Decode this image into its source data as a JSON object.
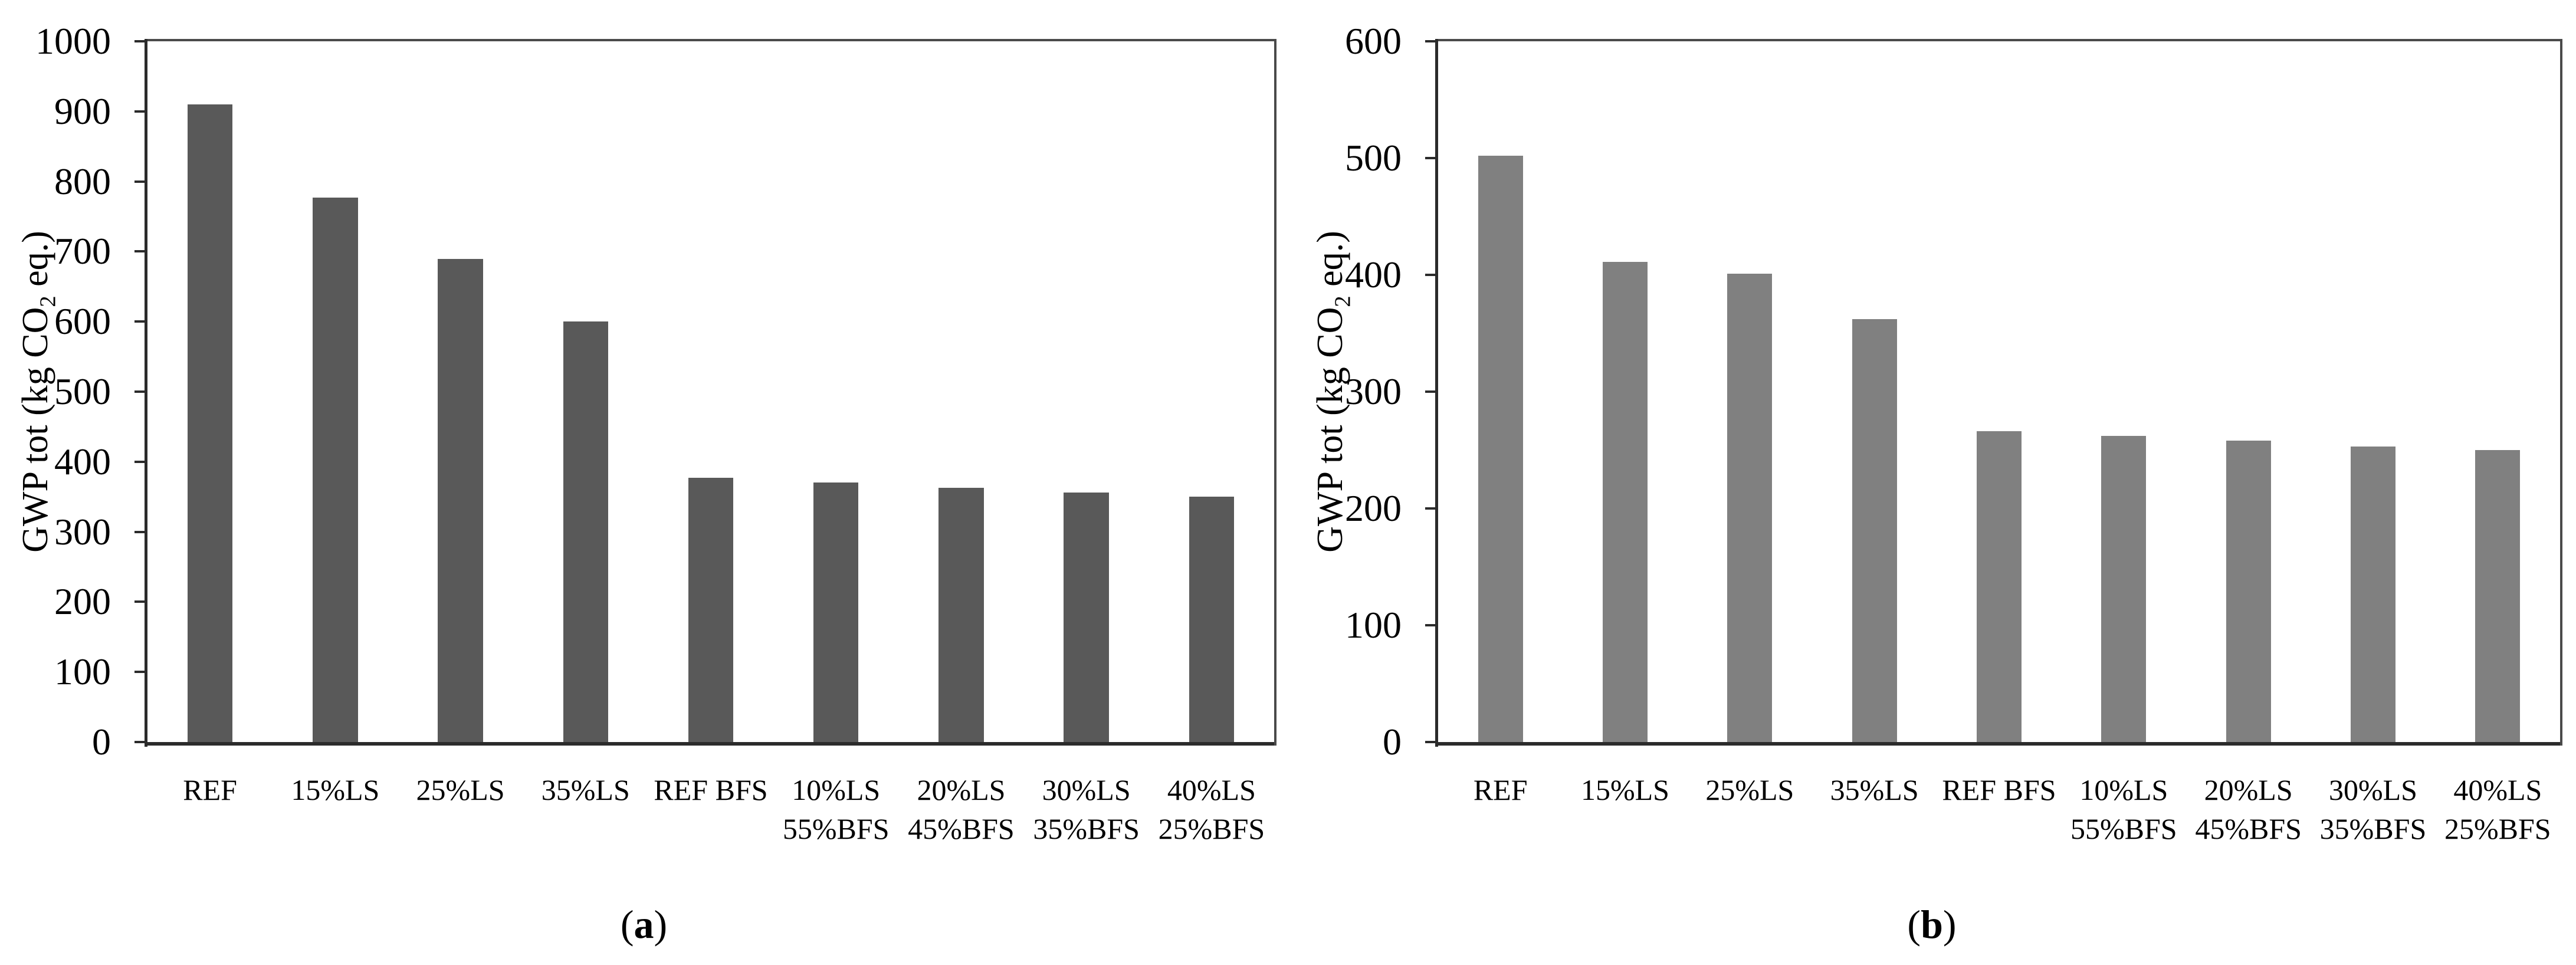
{
  "chart_data": [
    {
      "type": "bar",
      "title": "",
      "xlabel": "",
      "ylabel": "GWP tot (kg CO2 eq.)",
      "ylabel_parts": {
        "pre": "GWP tot (kg CO",
        "sub": "2",
        "post": " eq.)"
      },
      "ylim": [
        0,
        1000
      ],
      "ytick_step": 100,
      "ytick_labels": [
        "0",
        "100",
        "200",
        "300",
        "400",
        "500",
        "600",
        "700",
        "800",
        "900",
        "1000"
      ],
      "grid": false,
      "legend": null,
      "bar_color": "#595959",
      "axis_color": "#2b2b2b",
      "categories": [
        "REF",
        "15%LS",
        "25%LS",
        "35%LS",
        "REF BFS",
        "10%LS 55%BFS",
        "20%LS 45%BFS",
        "30%LS 35%BFS",
        "40%LS 25%BFS"
      ],
      "category_lines": [
        [
          "REF"
        ],
        [
          "15%LS"
        ],
        [
          "25%LS"
        ],
        [
          "35%LS"
        ],
        [
          "REF BFS"
        ],
        [
          "10%LS",
          "55%BFS"
        ],
        [
          "20%LS",
          "45%BFS"
        ],
        [
          "30%LS",
          "35%BFS"
        ],
        [
          "40%LS",
          "25%BFS"
        ]
      ],
      "values": [
        910,
        777,
        689,
        600,
        377,
        370,
        363,
        356,
        350
      ],
      "caption_open": "(",
      "caption_letter": "a",
      "caption_close": ")"
    },
    {
      "type": "bar",
      "title": "",
      "xlabel": "",
      "ylabel": "GWP tot (kg CO2 eq.)",
      "ylabel_parts": {
        "pre": "GWP tot (kg CO",
        "sub": "2",
        "post": " eq.)"
      },
      "ylim": [
        0,
        600
      ],
      "ytick_step": 100,
      "ytick_labels": [
        "0",
        "100",
        "200",
        "300",
        "400",
        "500",
        "600"
      ],
      "grid": false,
      "legend": null,
      "bar_color": "#808080",
      "axis_color": "#2b2b2b",
      "categories": [
        "REF",
        "15%LS",
        "25%LS",
        "35%LS",
        "REF BFS",
        "10%LS 55%BFS",
        "20%LS 45%BFS",
        "30%LS 35%BFS",
        "40%LS 25%BFS"
      ],
      "category_lines": [
        [
          "REF"
        ],
        [
          "15%LS"
        ],
        [
          "25%LS"
        ],
        [
          "35%LS"
        ],
        [
          "REF BFS"
        ],
        [
          "10%LS",
          "55%BFS"
        ],
        [
          "20%LS",
          "45%BFS"
        ],
        [
          "30%LS",
          "35%BFS"
        ],
        [
          "40%LS",
          "25%BFS"
        ]
      ],
      "values": [
        502,
        411,
        401,
        362,
        266,
        262,
        258,
        253,
        250
      ],
      "caption_open": "(",
      "caption_letter": "b",
      "caption_close": ")"
    }
  ]
}
